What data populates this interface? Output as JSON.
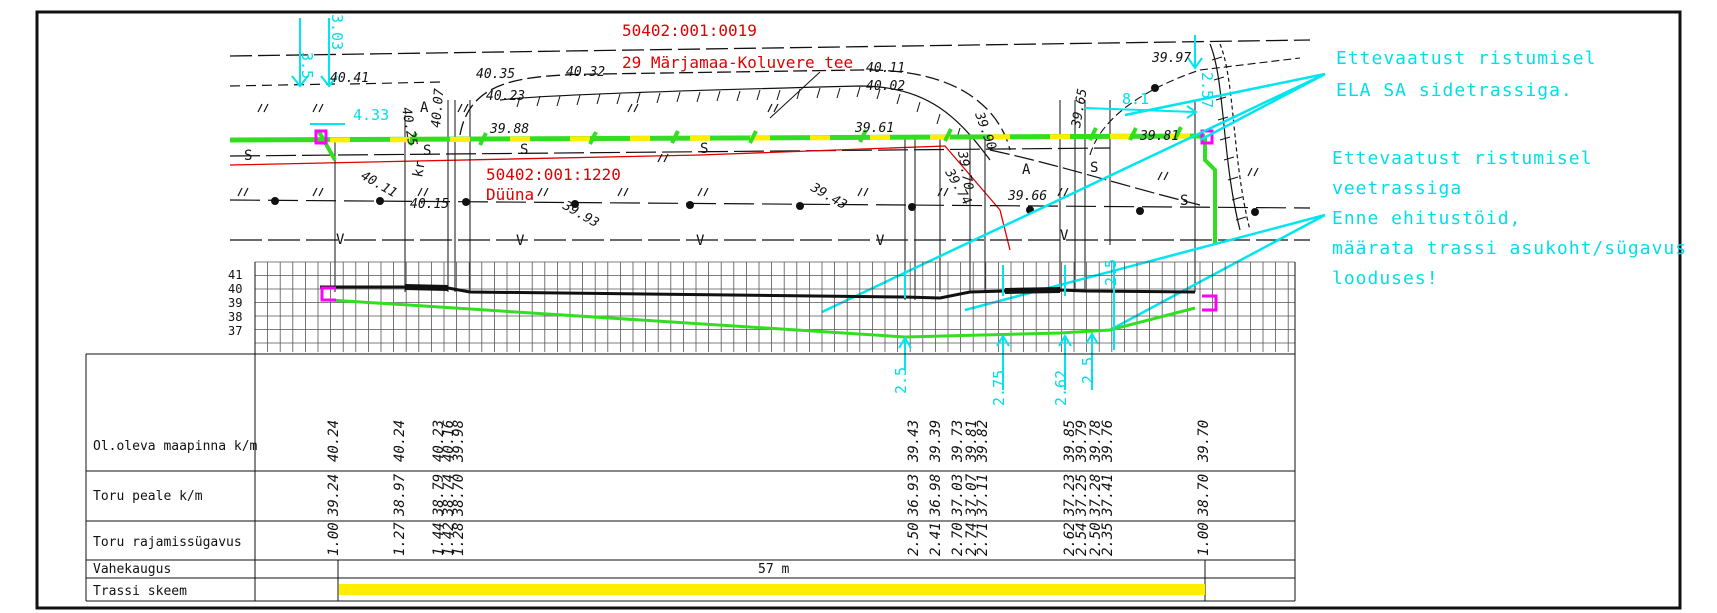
{
  "colors": {
    "cyan": "#00e5ee",
    "red": "#e00000",
    "green": "#33dd22",
    "yellow": "#ffee00",
    "magenta": "#ff00ff"
  },
  "parcels": {
    "road_id": "50402:001:0019",
    "road_name": "29 Märjamaa-Koluvere tee",
    "plot_id": "50402:001:1220",
    "plot_name": "Düüna"
  },
  "notes": [
    {
      "text": "Ettevaatust ristumisel"
    },
    {
      "text": "ELA SA sidetrassiga."
    },
    {
      "text": "Ettevaatust ristumisel"
    },
    {
      "text": "veetrassiga"
    },
    {
      "text": "Enne ehitustöid,"
    },
    {
      "text": "määrata trassi asukoht/sügavus"
    },
    {
      "text": "looduses!"
    }
  ],
  "plan_labels": {
    "d_35": "3.5",
    "d_303": "3.03",
    "d_433": "4.33",
    "d_81": "8.1",
    "d_257": "2.57",
    "s_mark": "S",
    "v_mark": "V",
    "a_mark": "A",
    "kr_mark": "kr"
  },
  "spot_heights": [
    {
      "text": "40.41"
    },
    {
      "text": "40.35"
    },
    {
      "text": "40.32"
    },
    {
      "text": "40.23"
    },
    {
      "text": "40.11"
    },
    {
      "text": "40.02"
    },
    {
      "text": "39.97"
    },
    {
      "text": "39.88"
    },
    {
      "text": "40.25"
    },
    {
      "text": "40.07"
    },
    {
      "text": "39.61"
    },
    {
      "text": "39.90"
    },
    {
      "text": "39.65"
    },
    {
      "text": "39.81"
    },
    {
      "text": "40.11"
    },
    {
      "text": "40.15"
    },
    {
      "text": "39.93"
    },
    {
      "text": "39.43"
    },
    {
      "text": "39.66"
    },
    {
      "text": "39.70"
    },
    {
      "text": "39.74"
    }
  ],
  "profile": {
    "y_ticks": [
      "41",
      "40",
      "39",
      "38",
      "37"
    ],
    "dims": [
      "2.5",
      "2.75",
      "2.62",
      "2.5",
      "2.5"
    ]
  },
  "table": {
    "rows": [
      {
        "label": "Ol.oleva maapinna k/m"
      },
      {
        "label": "Toru peale k/m"
      },
      {
        "label": "Toru rajamissügavus"
      },
      {
        "label": "Vahekaugus"
      },
      {
        "label": "Trassi skeem"
      }
    ],
    "distance": "57 m",
    "columns": [
      {
        "ground": "40.24",
        "pipe": "39.24",
        "depth": "1.00"
      },
      {
        "ground": "40.24",
        "pipe": "38.97",
        "depth": "1.27"
      },
      {
        "ground": "40.23",
        "pipe": "38.79",
        "depth": "1.44"
      },
      {
        "ground": "40.16",
        "pipe": "38.74",
        "depth": "1.42"
      },
      {
        "ground": "39.98",
        "pipe": "38.70",
        "depth": "1.28"
      },
      {
        "ground": "39.43",
        "pipe": "36.93",
        "depth": "2.50"
      },
      {
        "ground": "39.39",
        "pipe": "36.98",
        "depth": "2.41"
      },
      {
        "ground": "39.73",
        "pipe": "37.03",
        "depth": "2.70"
      },
      {
        "ground": "39.81",
        "pipe": "37.07",
        "depth": "2.74"
      },
      {
        "ground": "39.82",
        "pipe": "37.11",
        "depth": "2.71"
      },
      {
        "ground": "39.85",
        "pipe": "37.23",
        "depth": "2.62"
      },
      {
        "ground": "39.79",
        "pipe": "37.25",
        "depth": "2.54"
      },
      {
        "ground": "39.78",
        "pipe": "37.28",
        "depth": "2.50"
      },
      {
        "ground": "39.76",
        "pipe": "37.41",
        "depth": "2.35"
      },
      {
        "ground": "39.70",
        "pipe": "38.70",
        "depth": "1.00"
      }
    ]
  }
}
